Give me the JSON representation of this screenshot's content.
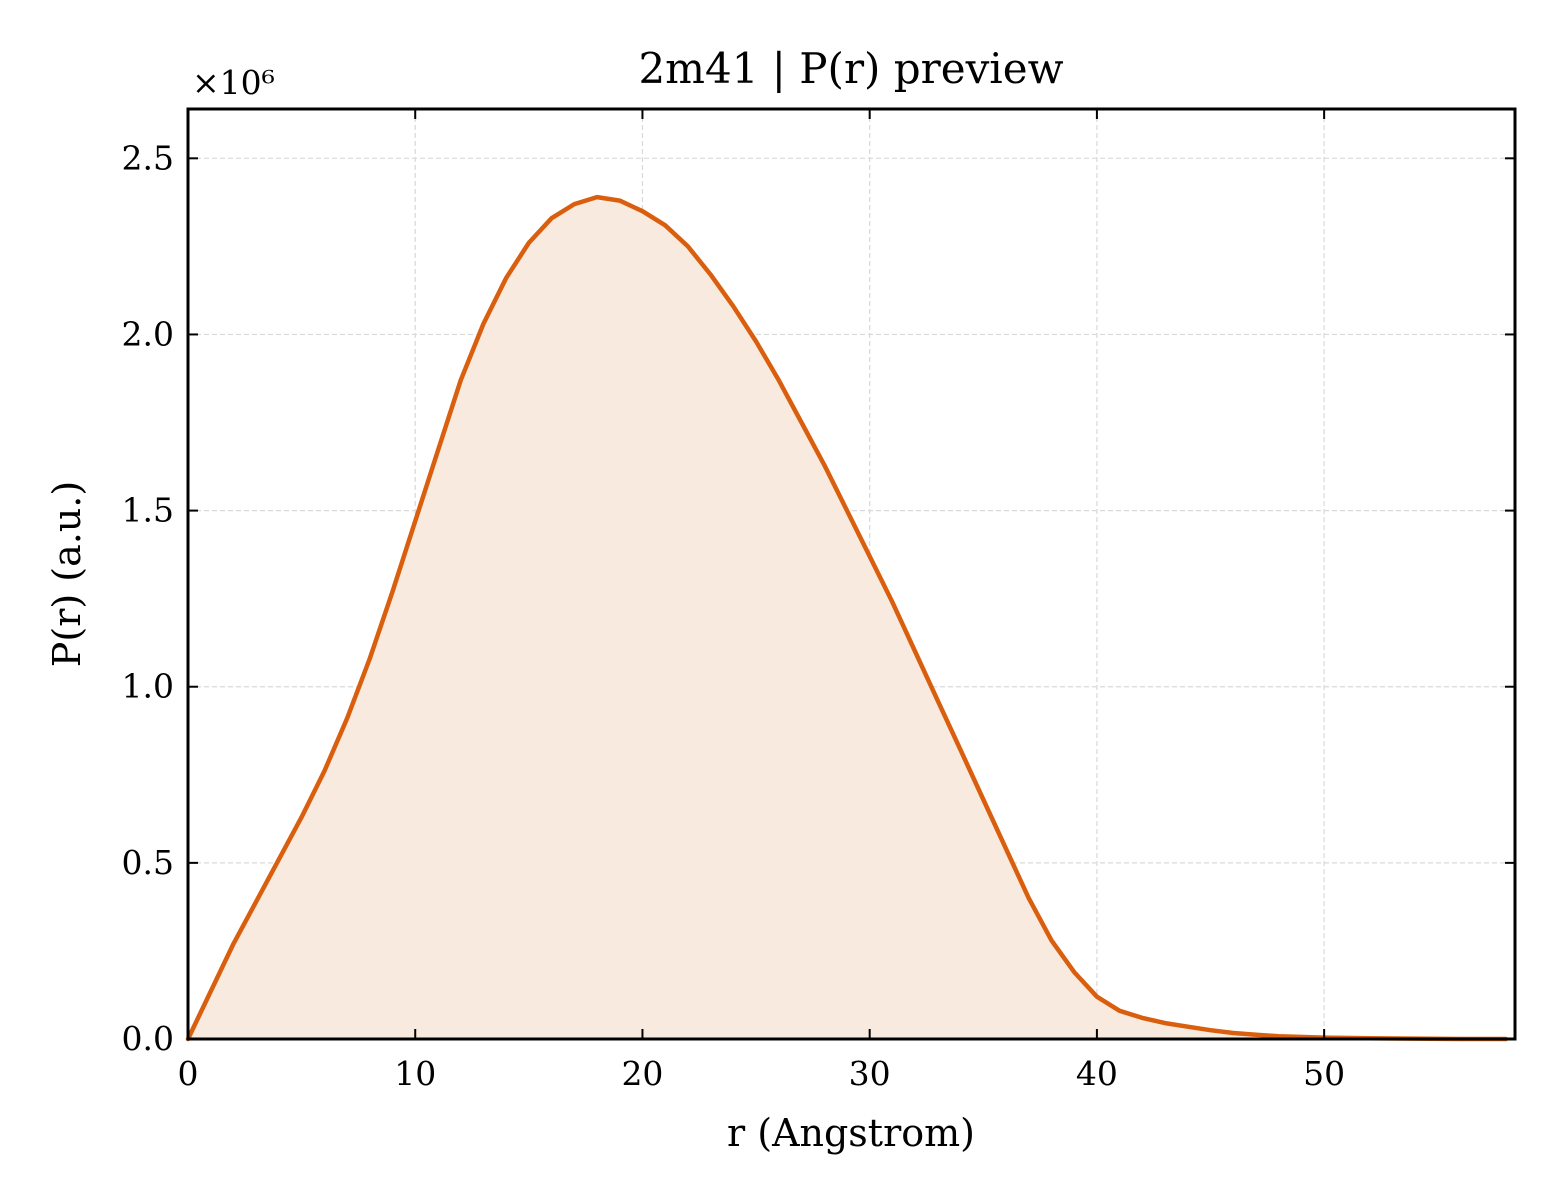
{
  "chart_data": {
    "type": "area",
    "title": "2m41 | P(r) preview",
    "xlabel": "r (Angstrom)",
    "ylabel": "P(r) (a.u.)",
    "y_multiplier": "×10⁶",
    "xlim": [
      0,
      58.4
    ],
    "ylim": [
      0,
      2.64
    ],
    "x_ticks": [
      0,
      10,
      20,
      30,
      40,
      50
    ],
    "y_ticks": [
      0.0,
      0.5,
      1.0,
      1.5,
      2.0,
      2.5
    ],
    "x_tick_labels": [
      "0",
      "10",
      "20",
      "30",
      "40",
      "50"
    ],
    "y_tick_labels": [
      "0.0",
      "0.5",
      "1.0",
      "1.5",
      "2.0",
      "2.5"
    ],
    "grid": true,
    "colors": {
      "line": "#d95f0e",
      "fill": "#f9eadf",
      "grid": "#d9d9d9"
    },
    "series": [
      {
        "x": [
          0,
          2,
          4,
          5,
          6,
          7,
          8,
          9,
          10,
          11,
          12,
          13,
          14,
          15,
          16,
          17,
          18,
          19,
          20,
          21,
          22,
          23,
          24,
          25,
          26,
          27,
          28,
          29,
          30,
          31,
          32,
          33,
          34,
          35,
          36,
          37,
          38,
          39,
          40,
          41,
          42,
          43,
          44,
          45,
          46,
          47,
          48,
          50,
          52,
          54,
          56,
          58
        ],
        "y": [
          0.0,
          0.27,
          0.51,
          0.63,
          0.76,
          0.91,
          1.08,
          1.27,
          1.47,
          1.67,
          1.87,
          2.03,
          2.16,
          2.26,
          2.33,
          2.37,
          2.39,
          2.38,
          2.35,
          2.31,
          2.25,
          2.17,
          2.08,
          1.98,
          1.87,
          1.75,
          1.63,
          1.5,
          1.37,
          1.24,
          1.1,
          0.96,
          0.82,
          0.68,
          0.54,
          0.4,
          0.28,
          0.19,
          0.12,
          0.08,
          0.06,
          0.045,
          0.035,
          0.025,
          0.017,
          0.012,
          0.008,
          0.004,
          0.002,
          0.001,
          0.0,
          0.0
        ]
      }
    ]
  }
}
